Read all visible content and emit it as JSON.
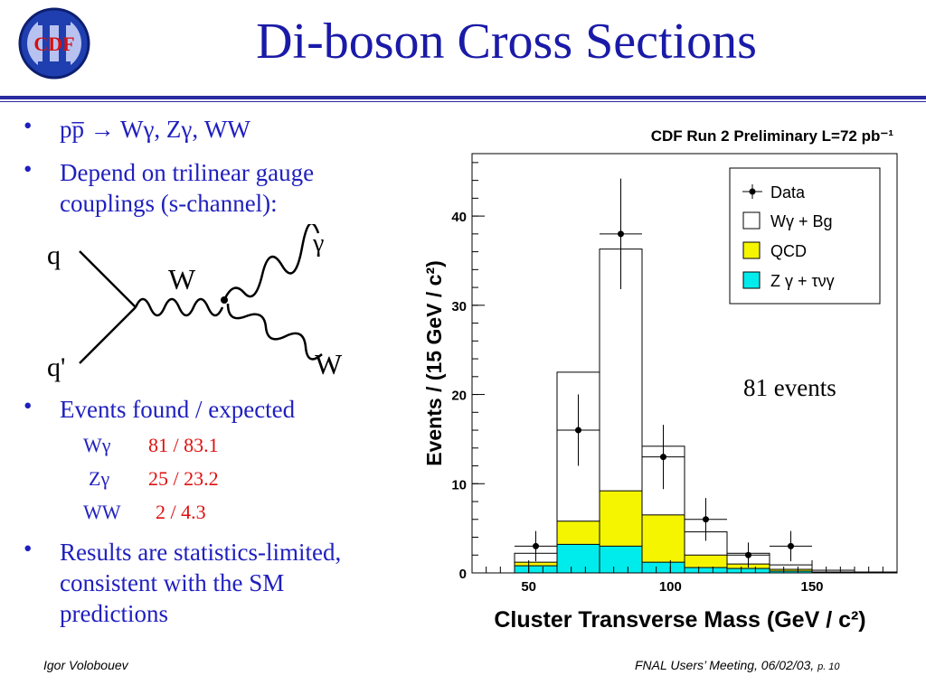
{
  "slide": {
    "logo_text": "CDF",
    "title": "Di-boson Cross Sections",
    "bullets": [
      {
        "text": "pp̅ → Wγ, Zγ, WW"
      },
      {
        "text_line1": "Depend on trilinear gauge",
        "text_line2": "couplings (s-channel):"
      },
      {
        "text": "Events found / expected"
      },
      {
        "text_line1": "Results are statistics-limited,",
        "text_line2": "consistent with the SM",
        "text_line3": "predictions"
      }
    ],
    "event_rows": [
      {
        "process": "Wγ",
        "value": "81 / 83.1"
      },
      {
        "process": "Zγ",
        "value": "25 / 23.2"
      },
      {
        "process": "WW",
        "value": "2 / 4.3"
      }
    ],
    "diagram": {
      "labels": {
        "q": "q",
        "qbar": "q'",
        "w_internal": "W",
        "gamma": "γ",
        "w_out": "W"
      }
    },
    "footer": {
      "author": "Igor Volobouev",
      "meeting": "FNAL Users’ Meeting, 06/02/03,",
      "page": "p. 10"
    }
  },
  "colors": {
    "text_blue": "#1f1fbf",
    "value_red": "#e01010",
    "qcd_yellow": "#f5f500",
    "zg_cyan": "#00ecec",
    "logo_red": "#d41010",
    "logo_blue": "#1f3fb0"
  },
  "chart_data": {
    "type": "bar",
    "title": "CDF Run 2 Preliminary L=72 pb⁻¹",
    "xlabel": "Cluster Transverse Mass (GeV / c²)",
    "ylabel": "Events / (15 GeV / c²)",
    "xlim": [
      30,
      180
    ],
    "ylim": [
      0,
      47
    ],
    "xticks": [
      50,
      100,
      150
    ],
    "yticks": [
      0,
      10,
      20,
      30,
      40
    ],
    "bin_edges": [
      30,
      45,
      60,
      75,
      90,
      105,
      120,
      135,
      150,
      165,
      180
    ],
    "series": [
      {
        "name": "Wγ + Bg",
        "values": [
          0,
          2.2,
          22.5,
          36.3,
          14.2,
          4.6,
          2.2,
          0.9,
          0.3,
          0.1
        ]
      },
      {
        "name": "QCD",
        "values": [
          0,
          1.2,
          5.8,
          9.2,
          6.5,
          2.0,
          1.0,
          0.4,
          0.1,
          0.0
        ]
      },
      {
        "name": "Z γ + τνγ",
        "values": [
          0,
          0.8,
          3.2,
          3.0,
          1.2,
          0.6,
          0.5,
          0.2,
          0.1,
          0.0
        ]
      }
    ],
    "data_points": {
      "name": "Data",
      "x": [
        52.5,
        67.5,
        82.5,
        97.5,
        112.5,
        127.5,
        142.5
      ],
      "y": [
        3,
        16,
        38,
        13,
        6,
        2,
        3
      ],
      "err": [
        1.7,
        4.0,
        6.2,
        3.6,
        2.4,
        1.4,
        1.7
      ]
    },
    "legend": {
      "placement": "top-right",
      "entries": [
        "Data",
        "Wγ + Bg",
        "QCD",
        "Z γ + τνγ"
      ]
    },
    "annotation": "81 events"
  }
}
